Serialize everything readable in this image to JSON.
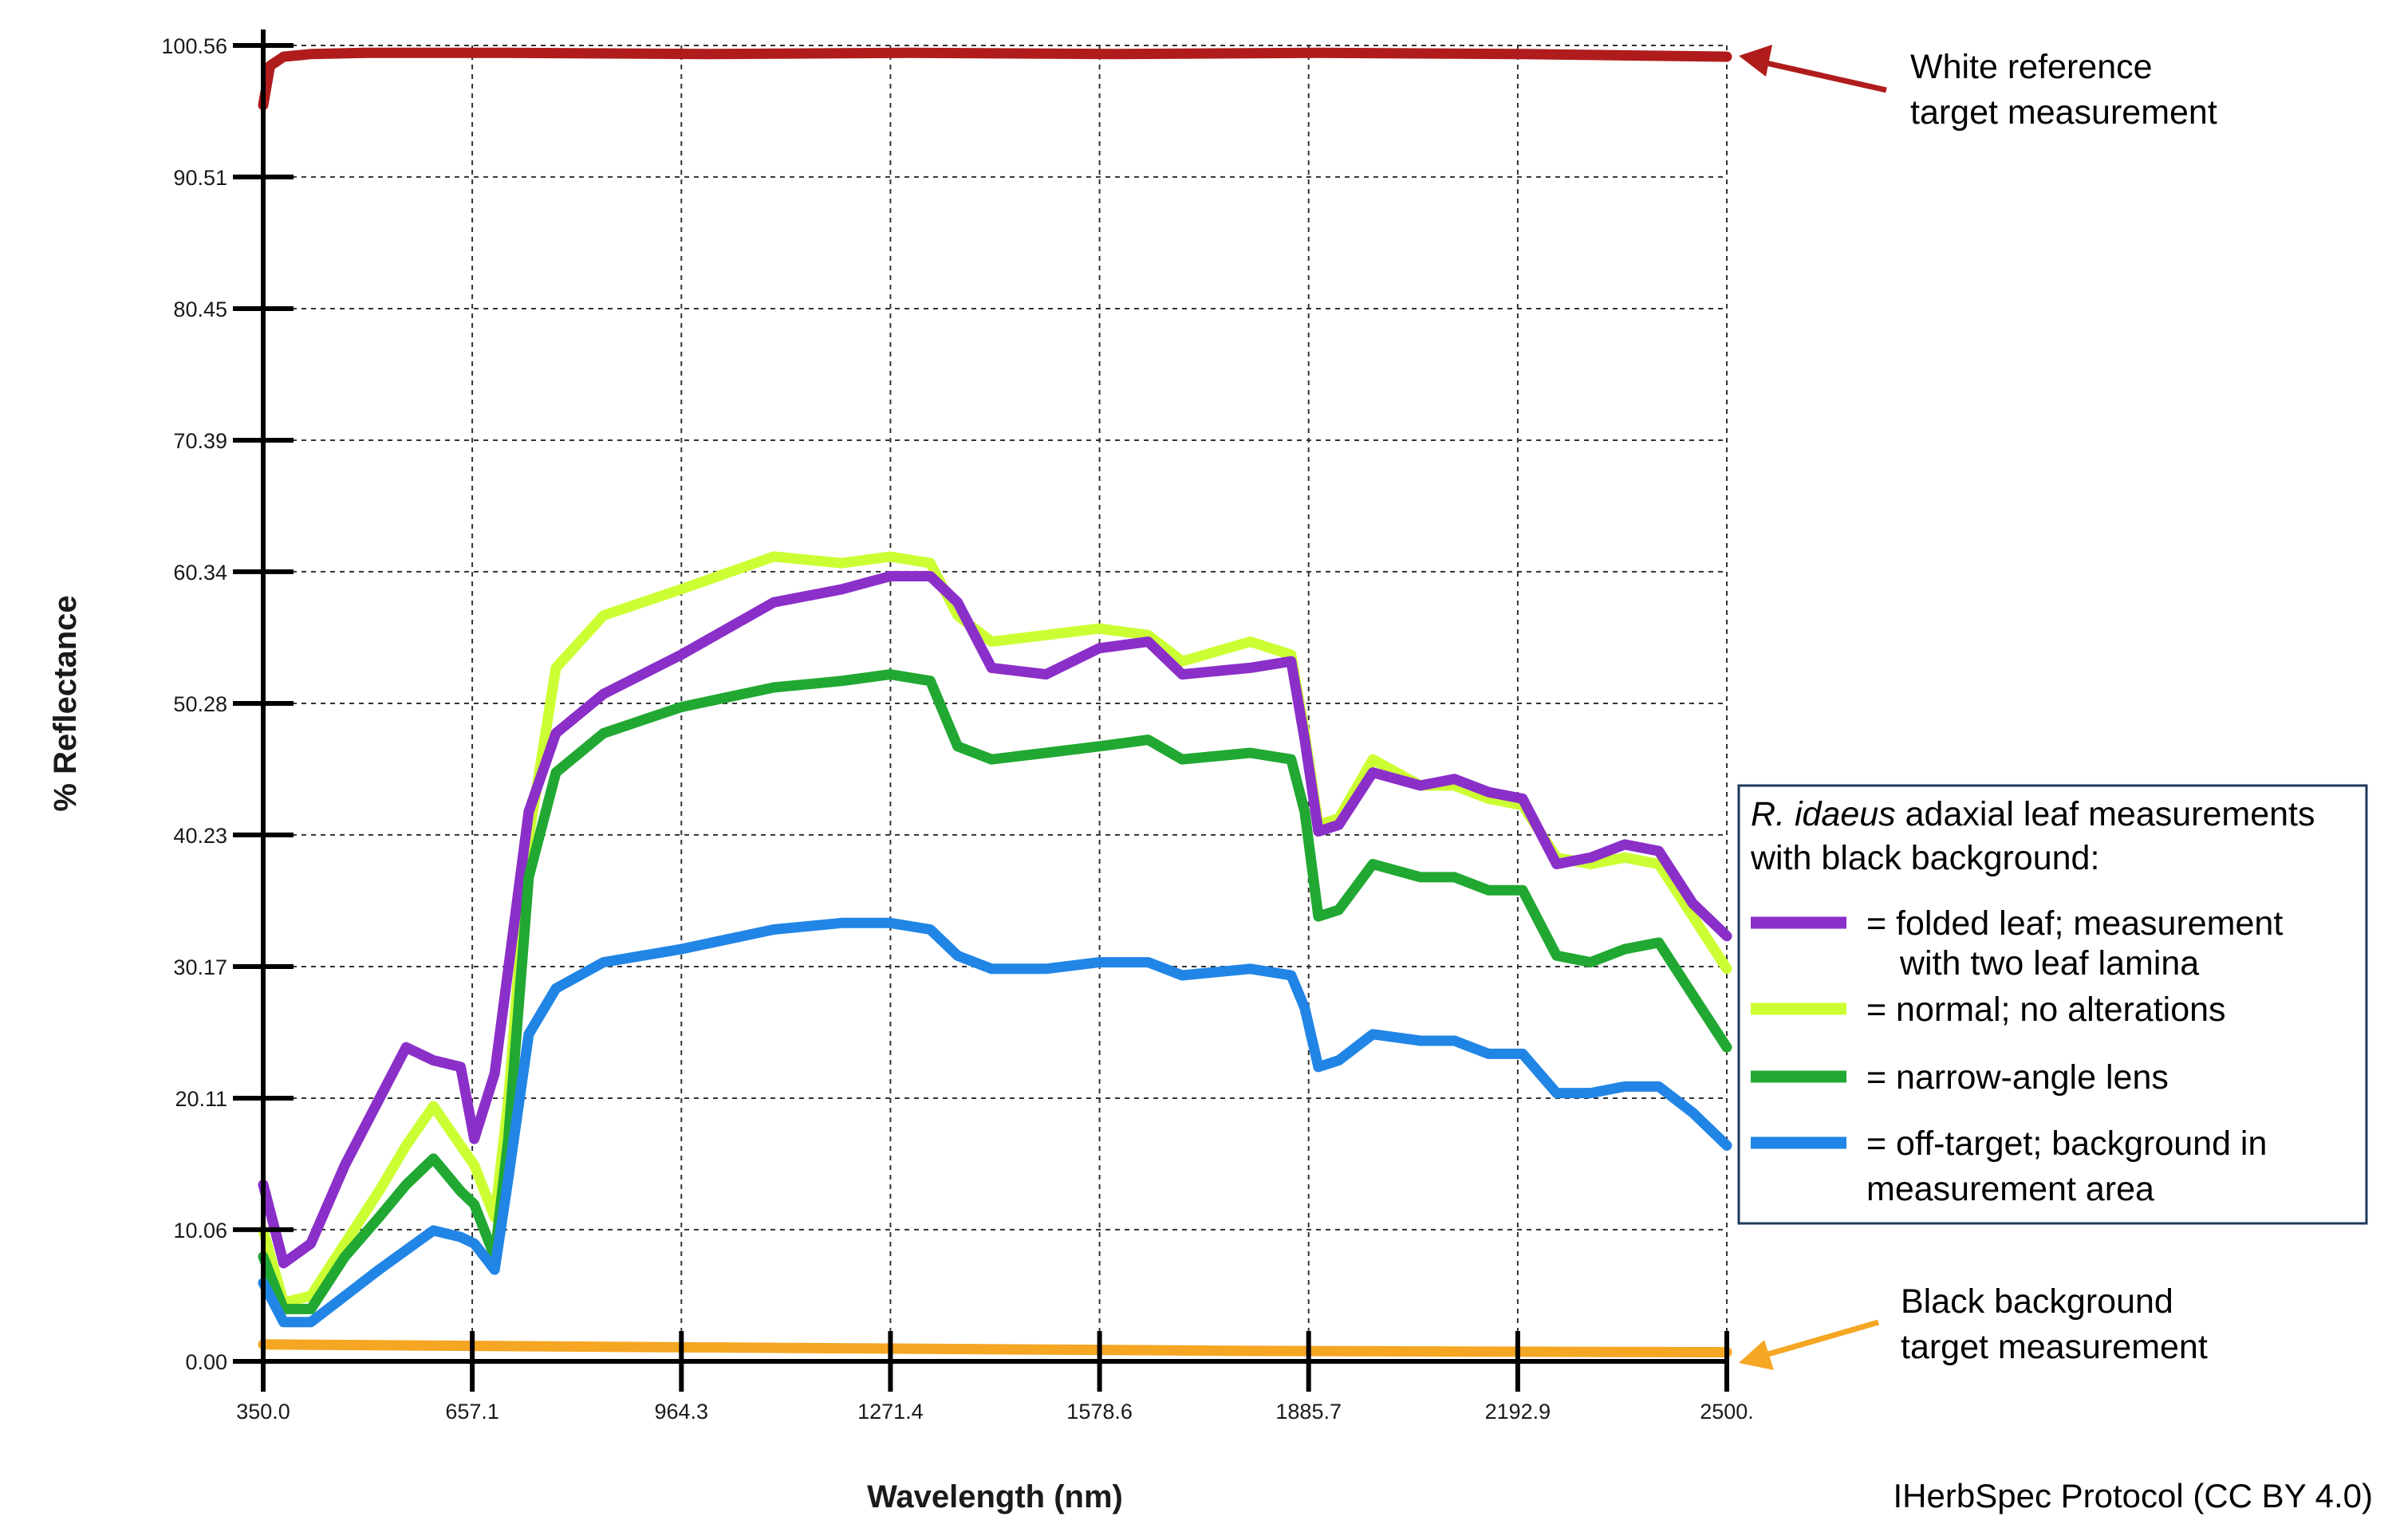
{
  "chart_data": {
    "type": "line",
    "title": "",
    "xlabel": "Wavelength (nm)",
    "ylabel": "% Reflectance",
    "xlim": [
      350.0,
      2500.0
    ],
    "ylim": [
      0.0,
      100.56
    ],
    "grid": true,
    "x_ticks": [
      "350.0",
      "657.1",
      "964.3",
      "1271.4",
      "1578.6",
      "1885.7",
      "2192.9",
      "2500."
    ],
    "y_ticks": [
      "0.00",
      "10.06",
      "20.11",
      "30.17",
      "40.23",
      "50.28",
      "60.34",
      "70.39",
      "80.45",
      "90.51",
      "100.56"
    ],
    "legend": {
      "placement": "right",
      "title_italic": "R. idaeus",
      "title_rest": " adaxial leaf measurements",
      "title_line2": "with black background:",
      "entries": [
        {
          "lines": [
            "= folded leaf; measurement",
            "with two leaf lamina"
          ],
          "color": "#8b2fc9"
        },
        {
          "lines": [
            "= normal; no alterations"
          ],
          "color": "#ccff33"
        },
        {
          "lines": [
            "= narrow-angle lens"
          ],
          "color": "#21a832"
        },
        {
          "lines": [
            "= off-target; background in",
            "measurement area"
          ],
          "color": "#2185e6"
        }
      ]
    },
    "annotations": [
      {
        "lines": [
          "White reference",
          "target measurement"
        ],
        "color": "#b01c1c"
      },
      {
        "lines": [
          "Black background",
          "target measurement"
        ],
        "color": "#f5a623"
      }
    ],
    "series": [
      {
        "color": "#b01c1c",
        "x": [
          350,
          360,
          380,
          420,
          500,
          700,
          1000,
          1300,
          1600,
          1900,
          2200,
          2500
        ],
        "y": [
          96,
          99,
          99.7,
          99.9,
          100,
          100,
          99.9,
          100,
          99.9,
          100,
          99.9,
          99.7
        ]
      },
      {
        "color": "#f5a623",
        "x": [
          350,
          600,
          900,
          1200,
          1500,
          1800,
          2100,
          2500
        ],
        "y": [
          1.3,
          1.2,
          1.1,
          1.0,
          0.9,
          0.8,
          0.75,
          0.7
        ]
      },
      {
        "color": "#ccff33",
        "x": [
          350,
          380,
          420,
          470,
          520,
          560,
          600,
          640,
          660,
          690,
          710,
          740,
          780,
          850,
          964,
          1100,
          1200,
          1271,
          1330,
          1370,
          1420,
          1500,
          1578,
          1650,
          1700,
          1800,
          1860,
          1880,
          1900,
          1930,
          1980,
          2050,
          2100,
          2150,
          2200,
          2250,
          2300,
          2350,
          2400,
          2450,
          2500
        ],
        "y": [
          10,
          4.5,
          5,
          9,
          13,
          16.5,
          19.5,
          16.5,
          15,
          11,
          20,
          40,
          53,
          57,
          59,
          61.5,
          61,
          61.5,
          61,
          57,
          55,
          55.5,
          56,
          55.5,
          53.5,
          55,
          54,
          48,
          41,
          41.5,
          46,
          44,
          44,
          43,
          42.5,
          38.5,
          38,
          38.5,
          38,
          34,
          30
        ]
      },
      {
        "color": "#8b2fc9",
        "x": [
          350,
          380,
          420,
          470,
          520,
          560,
          600,
          640,
          660,
          690,
          710,
          740,
          780,
          850,
          964,
          1100,
          1200,
          1271,
          1330,
          1370,
          1420,
          1500,
          1578,
          1650,
          1700,
          1800,
          1860,
          1880,
          1900,
          1930,
          1980,
          2050,
          2100,
          2150,
          2200,
          2250,
          2300,
          2350,
          2400,
          2450,
          2500
        ],
        "y": [
          13.5,
          7.5,
          9,
          15,
          20,
          24,
          23,
          22.5,
          17,
          22,
          30,
          42,
          48,
          51,
          54,
          58,
          59,
          60,
          60,
          58,
          53,
          52.5,
          54.5,
          55,
          52.5,
          53,
          53.5,
          47.5,
          40.5,
          41,
          45,
          44,
          44.5,
          43.5,
          43,
          38,
          38.5,
          39.5,
          39,
          35,
          32.5
        ]
      },
      {
        "color": "#21a832",
        "x": [
          350,
          380,
          420,
          470,
          520,
          560,
          600,
          640,
          660,
          690,
          710,
          740,
          780,
          850,
          964,
          1100,
          1200,
          1271,
          1330,
          1370,
          1420,
          1500,
          1578,
          1650,
          1700,
          1800,
          1860,
          1880,
          1900,
          1930,
          1980,
          2050,
          2100,
          2150,
          2200,
          2250,
          2300,
          2350,
          2400,
          2450,
          2500
        ],
        "y": [
          8,
          4,
          4,
          8,
          11,
          13.5,
          15.5,
          13,
          12,
          8,
          17,
          37,
          45,
          48,
          50,
          51.5,
          52,
          52.5,
          52,
          47,
          46,
          46.5,
          47,
          47.5,
          46,
          46.5,
          46,
          42,
          34,
          34.5,
          38,
          37,
          37,
          36,
          36,
          31,
          30.5,
          31.5,
          32,
          28,
          24
        ]
      },
      {
        "color": "#2185e6",
        "x": [
          350,
          380,
          420,
          470,
          520,
          560,
          600,
          640,
          660,
          690,
          710,
          740,
          780,
          850,
          964,
          1100,
          1200,
          1271,
          1330,
          1370,
          1420,
          1500,
          1578,
          1650,
          1700,
          1800,
          1860,
          1880,
          1900,
          1930,
          1980,
          2050,
          2100,
          2150,
          2200,
          2250,
          2300,
          2350,
          2400,
          2450,
          2500
        ],
        "y": [
          6,
          3,
          3,
          5,
          7,
          8.5,
          10,
          9.5,
          9,
          7,
          14,
          25,
          28.5,
          30.5,
          31.5,
          33,
          33.5,
          33.5,
          33,
          31,
          30,
          30,
          30.5,
          30.5,
          29.5,
          30,
          29.5,
          27,
          22.5,
          23,
          25,
          24.5,
          24.5,
          23.5,
          23.5,
          20.5,
          20.5,
          21,
          21,
          19,
          16.5
        ]
      }
    ]
  },
  "footer": {
    "credit": "IHerbSpec Protocol (CC BY 4.0)"
  }
}
